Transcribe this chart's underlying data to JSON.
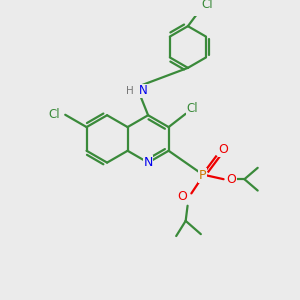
{
  "bg_color": "#ebebeb",
  "bond_color": "#3a8a3a",
  "atom_colors": {
    "N": "#0000ee",
    "O": "#ee0000",
    "P": "#cc7700",
    "Cl": "#3a8a3a",
    "H": "#777777"
  },
  "figsize": [
    3.0,
    3.0
  ],
  "dpi": 100
}
